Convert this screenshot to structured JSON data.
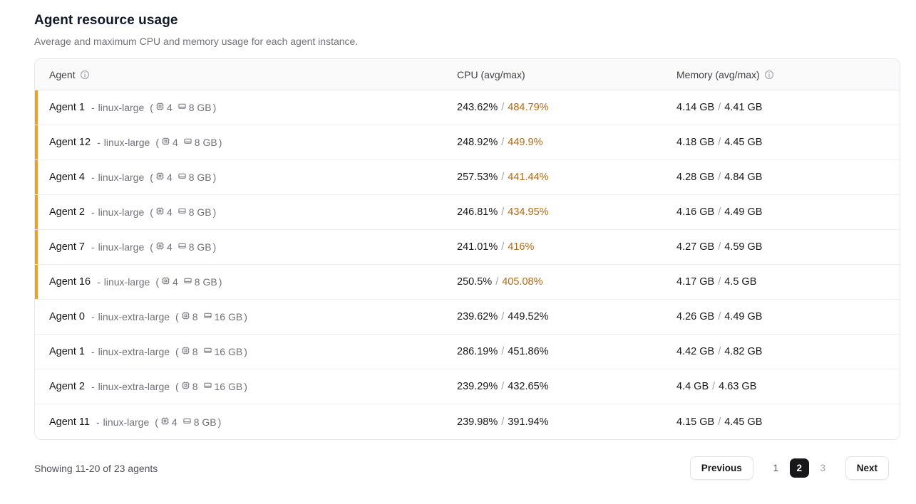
{
  "page": {
    "title": "Agent resource usage",
    "subtitle": "Average and maximum CPU and memory usage for each agent instance."
  },
  "table": {
    "columns": {
      "agent": "Agent",
      "cpu": "CPU (avg/max)",
      "memory": "Memory (avg/max)"
    },
    "slash": "/",
    "meta_dash": "-",
    "meta_open": "(",
    "meta_close": ")",
    "rows": [
      {
        "agent": "Agent 1",
        "type": "linux-large",
        "cpus": "4",
        "ram": "8 GB",
        "cpu_avg": "243.62%",
        "cpu_max": "484.79%",
        "mem_avg": "4.14 GB",
        "mem_max": "4.41 GB",
        "flagged": true
      },
      {
        "agent": "Agent 12",
        "type": "linux-large",
        "cpus": "4",
        "ram": "8 GB",
        "cpu_avg": "248.92%",
        "cpu_max": "449.9%",
        "mem_avg": "4.18 GB",
        "mem_max": "4.45 GB",
        "flagged": true
      },
      {
        "agent": "Agent 4",
        "type": "linux-large",
        "cpus": "4",
        "ram": "8 GB",
        "cpu_avg": "257.53%",
        "cpu_max": "441.44%",
        "mem_avg": "4.28 GB",
        "mem_max": "4.84 GB",
        "flagged": true
      },
      {
        "agent": "Agent 2",
        "type": "linux-large",
        "cpus": "4",
        "ram": "8 GB",
        "cpu_avg": "246.81%",
        "cpu_max": "434.95%",
        "mem_avg": "4.16 GB",
        "mem_max": "4.49 GB",
        "flagged": true
      },
      {
        "agent": "Agent 7",
        "type": "linux-large",
        "cpus": "4",
        "ram": "8 GB",
        "cpu_avg": "241.01%",
        "cpu_max": "416%",
        "mem_avg": "4.27 GB",
        "mem_max": "4.59 GB",
        "flagged": true
      },
      {
        "agent": "Agent 16",
        "type": "linux-large",
        "cpus": "4",
        "ram": "8 GB",
        "cpu_avg": "250.5%",
        "cpu_max": "405.08%",
        "mem_avg": "4.17 GB",
        "mem_max": "4.5 GB",
        "flagged": true
      },
      {
        "agent": "Agent 0",
        "type": "linux-extra-large",
        "cpus": "8",
        "ram": "16 GB",
        "cpu_avg": "239.62%",
        "cpu_max": "449.52%",
        "mem_avg": "4.26 GB",
        "mem_max": "4.49 GB",
        "flagged": false
      },
      {
        "agent": "Agent 1",
        "type": "linux-extra-large",
        "cpus": "8",
        "ram": "16 GB",
        "cpu_avg": "286.19%",
        "cpu_max": "451.86%",
        "mem_avg": "4.42 GB",
        "mem_max": "4.82 GB",
        "flagged": false
      },
      {
        "agent": "Agent 2",
        "type": "linux-extra-large",
        "cpus": "8",
        "ram": "16 GB",
        "cpu_avg": "239.29%",
        "cpu_max": "432.65%",
        "mem_avg": "4.4 GB",
        "mem_max": "4.63 GB",
        "flagged": false
      },
      {
        "agent": "Agent 11",
        "type": "linux-large",
        "cpus": "4",
        "ram": "8 GB",
        "cpu_avg": "239.98%",
        "cpu_max": "391.94%",
        "mem_avg": "4.15 GB",
        "mem_max": "4.45 GB",
        "flagged": false
      }
    ]
  },
  "footer": {
    "summary": "Showing 11-20 of 23 agents",
    "pagination": {
      "previous": "Previous",
      "next": "Next",
      "pages": [
        "1",
        "2",
        "3"
      ],
      "active_page": "2"
    }
  },
  "colors": {
    "accent_warning": "#e6a42c",
    "cpu_max_hot": "#b06a14",
    "active_page_bg": "#18181b"
  }
}
